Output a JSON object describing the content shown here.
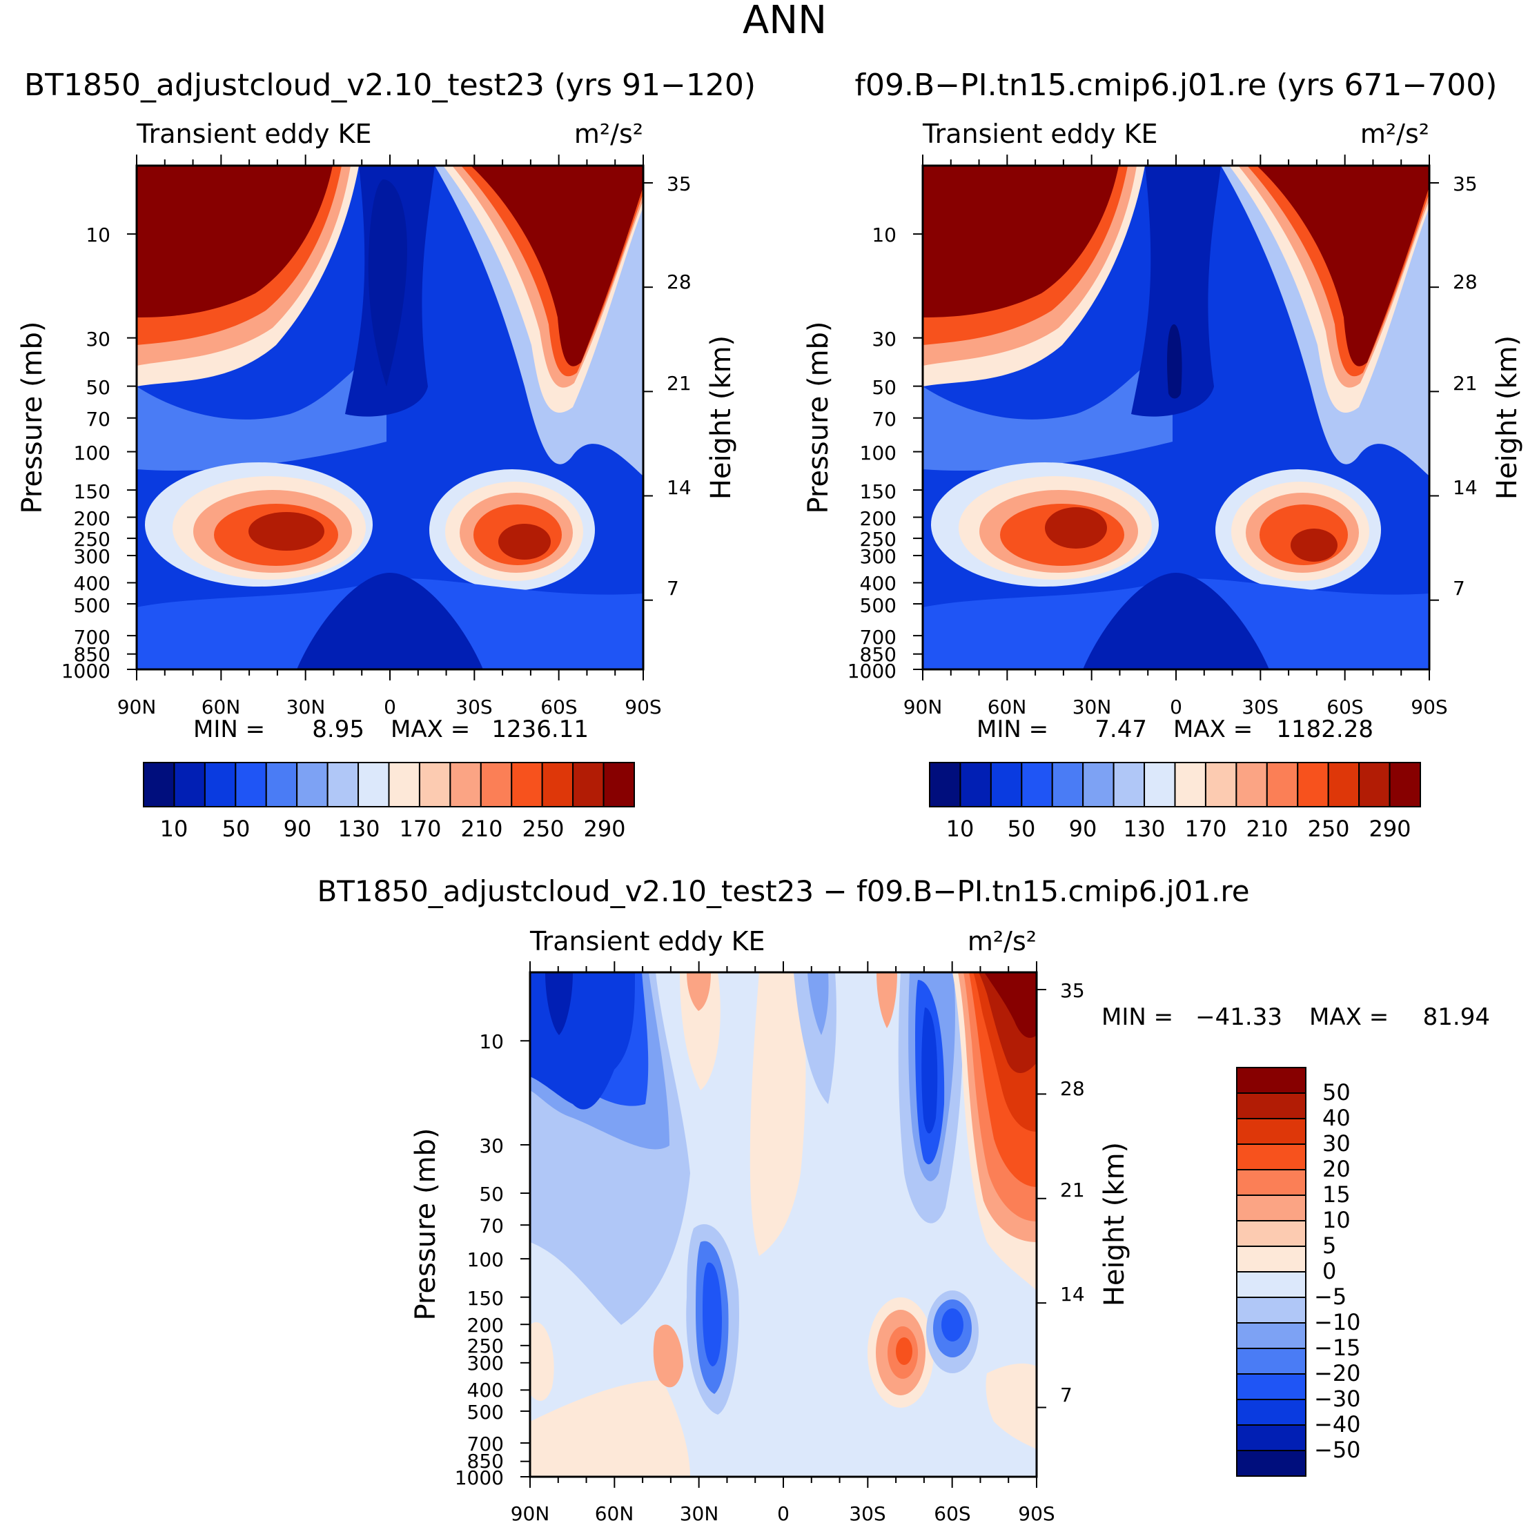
{
  "figure": {
    "title": "ANN",
    "diff_title": "BT1850_adjustcloud_v2.10_test23 − f09.B−PI.tn15.cmip6.j01.re"
  },
  "chart_data": [
    {
      "type": "heatmap",
      "title": "BT1850_adjustcloud_v2.10_test23 (yrs 91−120)",
      "left_label": "Transient eddy KE",
      "units": "m²/s²",
      "ylabel": "Pressure (mb)",
      "ylabel_right": "Height (km)",
      "xticks": [
        "90N",
        "60N",
        "30N",
        "0",
        "30S",
        "60S",
        "90S"
      ],
      "yticks": [
        "10",
        "30",
        "50",
        "70",
        "100",
        "150",
        "200",
        "250",
        "300",
        "400",
        "500",
        "700",
        "850",
        "1000"
      ],
      "height_ticks": [
        "35",
        "28",
        "21",
        "14",
        "7"
      ],
      "min_label": "MIN =",
      "min": "8.95",
      "max_label": "MAX =",
      "max": "1236.11",
      "colorbar_labels": [
        "10",
        "50",
        "90",
        "130",
        "170",
        "210",
        "250",
        "290"
      ],
      "colorbar_colors": [
        "#000e7d",
        "#011fb4",
        "#0a3be0",
        "#1f55f5",
        "#4a7cf5",
        "#7da2f4",
        "#b0c7f7",
        "#dce8fb",
        "#fde8d8",
        "#fccbb1",
        "#fba484",
        "#fb7f56",
        "#f7521d",
        "#de3709",
        "#b21c05",
        "#870000"
      ]
    },
    {
      "type": "heatmap",
      "title": "f09.B−PI.tn15.cmip6.j01.re (yrs 671−700)",
      "left_label": "Transient eddy KE",
      "units": "m²/s²",
      "ylabel": "Pressure (mb)",
      "ylabel_right": "Height (km)",
      "xticks": [
        "90N",
        "60N",
        "30N",
        "0",
        "30S",
        "60S",
        "90S"
      ],
      "yticks": [
        "10",
        "30",
        "50",
        "70",
        "100",
        "150",
        "200",
        "250",
        "300",
        "400",
        "500",
        "700",
        "850",
        "1000"
      ],
      "height_ticks": [
        "35",
        "28",
        "21",
        "14",
        "7"
      ],
      "min_label": "MIN =",
      "min": "7.47",
      "max_label": "MAX =",
      "max": "1182.28",
      "colorbar_labels": [
        "10",
        "50",
        "90",
        "130",
        "170",
        "210",
        "250",
        "290"
      ],
      "colorbar_colors": [
        "#000e7d",
        "#011fb4",
        "#0a3be0",
        "#1f55f5",
        "#4a7cf5",
        "#7da2f4",
        "#b0c7f7",
        "#dce8fb",
        "#fde8d8",
        "#fccbb1",
        "#fba484",
        "#fb7f56",
        "#f7521d",
        "#de3709",
        "#b21c05",
        "#870000"
      ]
    },
    {
      "type": "heatmap",
      "title": "BT1850_adjustcloud_v2.10_test23 − f09.B−PI.tn15.cmip6.j01.re",
      "left_label": "Transient eddy KE",
      "units": "m²/s²",
      "ylabel": "Pressure (mb)",
      "ylabel_right": "Height (km)",
      "xticks": [
        "90N",
        "60N",
        "30N",
        "0",
        "30S",
        "60S",
        "90S"
      ],
      "yticks": [
        "10",
        "30",
        "50",
        "70",
        "100",
        "150",
        "200",
        "250",
        "300",
        "400",
        "500",
        "700",
        "850",
        "1000"
      ],
      "height_ticks": [
        "35",
        "28",
        "21",
        "14",
        "7"
      ],
      "min_label": "MIN =",
      "min": "−41.33",
      "max_label": "MAX =",
      "max": "81.94",
      "colorbar_labels": [
        "50",
        "40",
        "30",
        "20",
        "15",
        "10",
        "5",
        "0",
        "−5",
        "−10",
        "−15",
        "−20",
        "−30",
        "−40",
        "−50"
      ],
      "colorbar_colors": [
        "#870000",
        "#b21c05",
        "#de3709",
        "#f7521d",
        "#fb7f56",
        "#fba484",
        "#fccbb1",
        "#fde8d8",
        "#dce8fb",
        "#b0c7f7",
        "#7da2f4",
        "#4a7cf5",
        "#1f55f5",
        "#0a3be0",
        "#011fb4",
        "#000e7d"
      ]
    }
  ]
}
